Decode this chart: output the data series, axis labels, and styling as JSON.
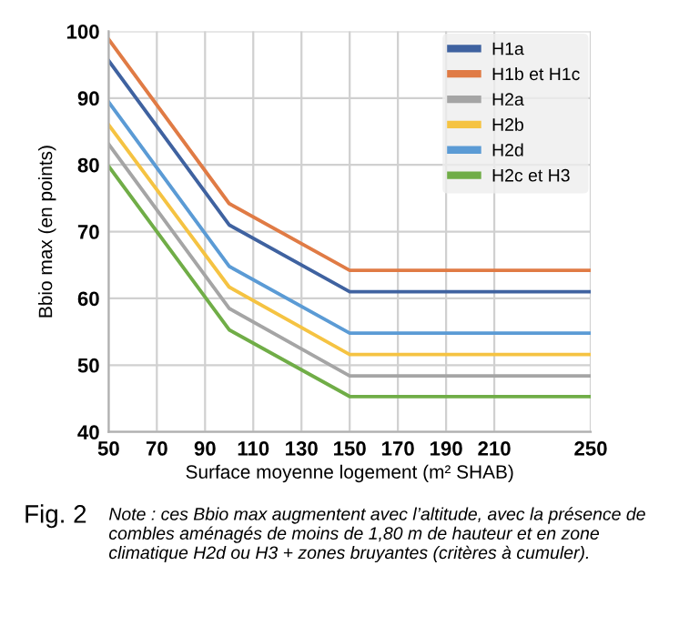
{
  "chart_data": {
    "type": "line",
    "xlabel": "Surface moyenne logement (m² SHAB)",
    "ylabel": "Bbio max (en points)",
    "x": [
      50,
      100,
      150,
      250
    ],
    "series": [
      {
        "name": "H1a",
        "color": "#3f62a0",
        "values": [
          95.6,
          71,
          61,
          61
        ]
      },
      {
        "name": "H1b et H1c",
        "color": "#e07b45",
        "values": [
          98.8,
          74.2,
          64.2,
          64.2
        ]
      },
      {
        "name": "H2a",
        "color": "#a5a5a5",
        "values": [
          83.1,
          58.5,
          48.4,
          48.4
        ]
      },
      {
        "name": "H2b",
        "color": "#f5c342",
        "values": [
          86,
          61.7,
          51.6,
          51.6
        ]
      },
      {
        "name": "H2d",
        "color": "#5b9bd5",
        "values": [
          89.4,
          64.8,
          54.8,
          54.8
        ]
      },
      {
        "name": "H2c et H3",
        "color": "#70ad47",
        "values": [
          79.8,
          55.3,
          45.3,
          45.3
        ]
      }
    ],
    "xlim": [
      50,
      250
    ],
    "xticks": [
      50,
      70,
      90,
      110,
      130,
      150,
      170,
      190,
      210,
      250
    ],
    "ylim": [
      40,
      100
    ],
    "yticks": [
      40,
      50,
      60,
      70,
      80,
      90,
      100
    ],
    "grid": true,
    "legend": "top right",
    "marker": "none",
    "line_style": "solid",
    "annotations": [
      "Fig. 2",
      "Note : ces Bbio max augmentent avec l’altitude, avec la présence de combles aménagés de moins de 1,80 m de hauteur et en zone climatique H2d ou H3 + zones bruyantes (critères à cumuler)."
    ]
  }
}
